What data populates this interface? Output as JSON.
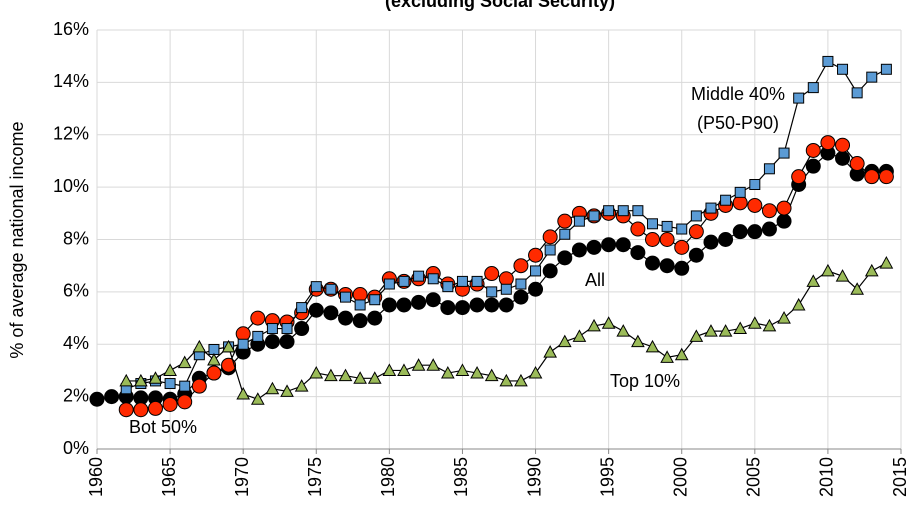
{
  "chart_data": {
    "type": "line",
    "subtitle": "(excluding Social Security)",
    "y_label": "% of average national income",
    "x": [
      1960,
      1961,
      1962,
      1963,
      1964,
      1965,
      1966,
      1967,
      1968,
      1969,
      1970,
      1971,
      1972,
      1973,
      1974,
      1975,
      1976,
      1977,
      1978,
      1979,
      1980,
      1981,
      1982,
      1983,
      1984,
      1985,
      1986,
      1987,
      1988,
      1989,
      1990,
      1991,
      1992,
      1993,
      1994,
      1995,
      1996,
      1997,
      1998,
      1999,
      2000,
      2001,
      2002,
      2003,
      2004,
      2005,
      2006,
      2007,
      2008,
      2009,
      2010,
      2011,
      2012,
      2013,
      2014
    ],
    "series": [
      {
        "name": "All",
        "color": "#000000",
        "marker": "circle",
        "values": [
          1.9,
          2.0,
          2.0,
          1.95,
          1.95,
          1.9,
          2.1,
          2.7,
          2.9,
          3.1,
          3.7,
          4.0,
          4.1,
          4.1,
          4.6,
          5.3,
          5.2,
          5.0,
          4.9,
          5.0,
          5.5,
          5.5,
          5.6,
          5.7,
          5.4,
          5.4,
          5.5,
          5.5,
          5.5,
          5.8,
          6.1,
          6.8,
          7.3,
          7.6,
          7.7,
          7.8,
          7.8,
          7.5,
          7.1,
          7.0,
          6.9,
          7.4,
          7.9,
          8.0,
          8.3,
          8.3,
          8.4,
          8.7,
          10.1,
          10.8,
          11.3,
          11.1,
          10.5,
          10.6,
          10.6
        ]
      },
      {
        "name": "Bot 50%",
        "color": "#ff2a00",
        "marker": "circle",
        "values": [
          null,
          null,
          1.5,
          1.5,
          1.55,
          1.7,
          1.8,
          2.4,
          2.9,
          3.2,
          4.4,
          5.0,
          4.9,
          4.85,
          5.2,
          6.1,
          6.1,
          5.9,
          5.9,
          5.8,
          6.5,
          6.4,
          6.5,
          6.7,
          6.3,
          6.1,
          6.3,
          6.7,
          6.5,
          7.0,
          7.4,
          8.1,
          8.7,
          9.0,
          8.9,
          9.0,
          8.9,
          8.4,
          8.0,
          8.0,
          7.7,
          8.3,
          9.0,
          9.3,
          9.4,
          9.3,
          9.1,
          9.2,
          10.4,
          11.4,
          11.7,
          11.6,
          10.9,
          10.4,
          10.4
        ]
      },
      {
        "name": "Middle 40%",
        "sublabel": "(P50-P90)",
        "color": "#5b9bd5",
        "marker": "square",
        "values": [
          null,
          null,
          2.3,
          2.5,
          2.6,
          2.5,
          2.4,
          3.6,
          3.8,
          3.9,
          4.0,
          4.3,
          4.6,
          4.6,
          5.4,
          6.2,
          6.1,
          5.8,
          5.5,
          5.7,
          6.3,
          6.4,
          6.6,
          6.5,
          6.2,
          6.4,
          6.4,
          6.0,
          6.1,
          6.3,
          6.8,
          7.6,
          8.2,
          8.7,
          8.9,
          9.1,
          9.1,
          9.1,
          8.6,
          8.5,
          8.4,
          8.9,
          9.2,
          9.5,
          9.8,
          10.1,
          10.7,
          11.3,
          13.4,
          13.8,
          14.8,
          14.5,
          13.6,
          14.2,
          14.5
        ]
      },
      {
        "name": "Top 10%",
        "color": "#9bbb59",
        "marker": "triangle",
        "values": [
          null,
          null,
          2.6,
          2.6,
          2.7,
          3.0,
          3.3,
          3.9,
          3.4,
          3.9,
          2.1,
          1.9,
          2.3,
          2.2,
          2.4,
          2.9,
          2.8,
          2.8,
          2.7,
          2.7,
          3.0,
          3.0,
          3.2,
          3.2,
          2.9,
          3.0,
          2.9,
          2.8,
          2.6,
          2.6,
          2.9,
          3.7,
          4.1,
          4.3,
          4.7,
          4.8,
          4.5,
          4.1,
          3.9,
          3.5,
          3.6,
          4.3,
          4.5,
          4.5,
          4.6,
          4.8,
          4.7,
          5.0,
          5.5,
          6.4,
          6.8,
          6.6,
          6.1,
          6.8,
          7.1
        ]
      }
    ],
    "xlim": [
      1960,
      2015
    ],
    "xticks": [
      1960,
      1965,
      1970,
      1975,
      1980,
      1985,
      1990,
      1995,
      2000,
      2005,
      2010,
      2015
    ],
    "ylim": [
      0,
      16
    ],
    "yticks": [
      {
        "value": 0,
        "label": "0%"
      },
      {
        "value": 2,
        "label": "2%"
      },
      {
        "value": 4,
        "label": "4%"
      },
      {
        "value": 6,
        "label": "6%"
      },
      {
        "value": 8,
        "label": "8%"
      },
      {
        "value": 10,
        "label": "10%"
      },
      {
        "value": 12,
        "label": "12%"
      },
      {
        "value": 14,
        "label": "14%"
      },
      {
        "value": 16,
        "label": "16%"
      }
    ],
    "grid": true
  }
}
